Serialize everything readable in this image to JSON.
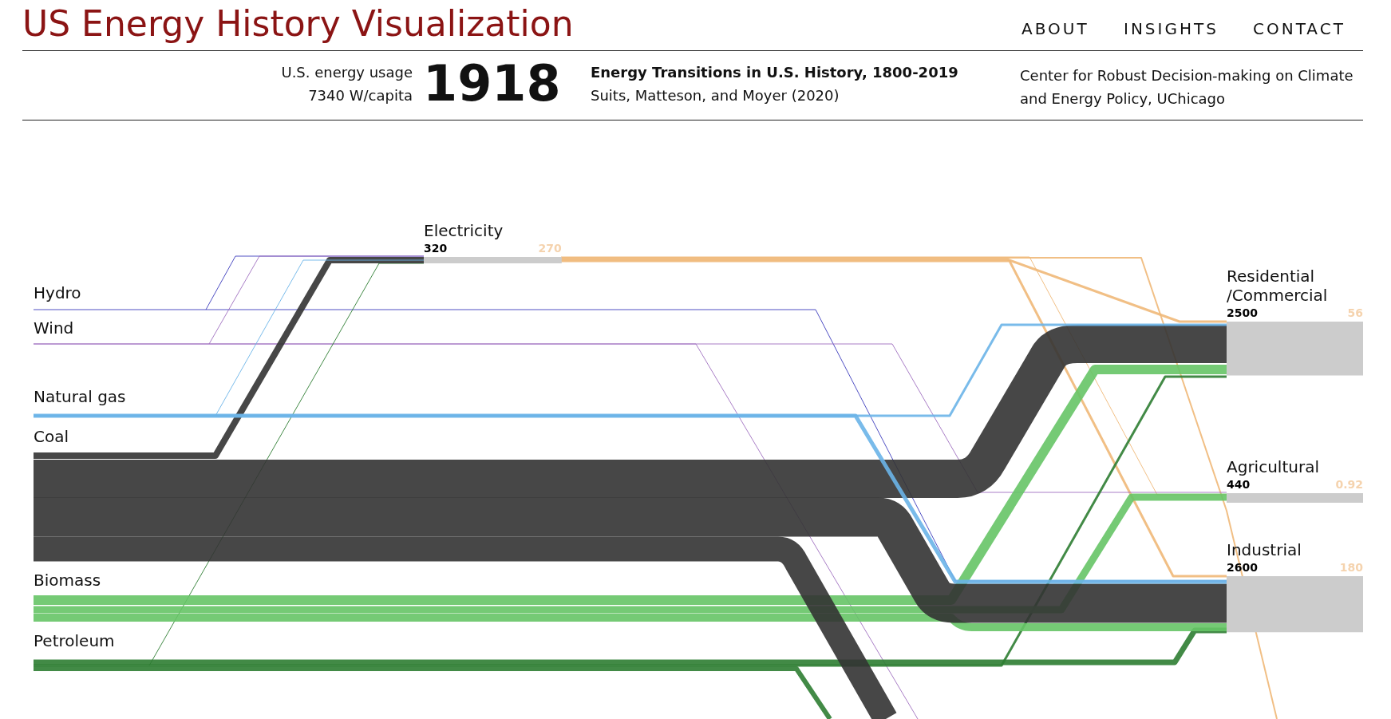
{
  "chart_data": {
    "type": "other",
    "title": "US Energy History Visualization",
    "categories": [
      "Hydro",
      "Wind",
      "Natural gas",
      "Coal",
      "Biomass",
      "Petroleum",
      "Electricity",
      "Residential/Commercial",
      "Agricultural",
      "Industrial"
    ],
    "series": [
      {
        "color": "#cccccc",
        "values": [
          null,
          null,
          null,
          null,
          null,
          null,
          320,
          2500,
          440,
          2600
        ]
      },
      {
        "color": "#f5d3ae",
        "values": [
          null,
          null,
          null,
          null,
          null,
          null,
          270,
          56,
          0.92,
          180
        ]
      }
    ],
    "data_labels": true,
    "annotations": [
      "ABOUT",
      "INSIGHTS",
      "CONTACT",
      "U.S. energy usage",
      "7340 W/capita",
      "1918",
      "Energy Transitions in U.S. History, 1800-2019",
      "Suits, Matteson, and Moyer (2020)",
      "Center for Robust Decision-making on Climate and Energy Policy, UChicago"
    ]
  }
}
